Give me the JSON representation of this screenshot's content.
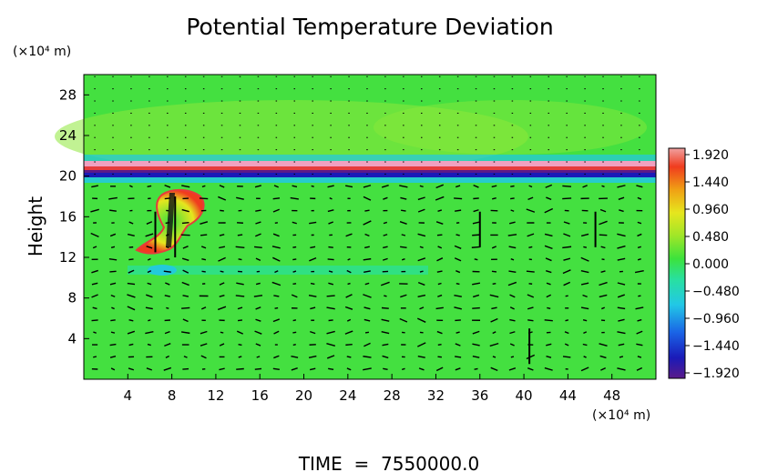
{
  "chart_data": {
    "type": "heatmap",
    "title": "Potential Temperature Deviation",
    "ylabel": "Height",
    "y_units": "(×10⁴ m)",
    "x_units": "(×10⁴ m)",
    "xlim": [
      0,
      52
    ],
    "ylim": [
      0,
      30
    ],
    "x_ticks": [
      4,
      8,
      12,
      16,
      20,
      24,
      28,
      32,
      36,
      40,
      44,
      48
    ],
    "y_ticks": [
      4,
      8,
      12,
      16,
      20,
      24,
      28
    ],
    "colorbar": {
      "ticks": [
        "1.920",
        "1.440",
        "0.960",
        "0.480",
        "0.000",
        "−0.480",
        "−0.960",
        "−1.440",
        "−1.920"
      ],
      "range": [
        -1.92,
        1.92
      ],
      "colors": [
        "#5a1a8a",
        "#1a1ab8",
        "#1a64e6",
        "#22c8e6",
        "#28e0a0",
        "#3ce23c",
        "#a0e628",
        "#e6e61e",
        "#f0a014",
        "#f03c1e",
        "#f0a0a0"
      ]
    },
    "features": [
      {
        "label": "stratospheric band",
        "y": 20.5,
        "value": 1.9
      },
      {
        "label": "convective plume",
        "x": 8.5,
        "y": 15.5,
        "value": 1.6
      }
    ],
    "wind_vectors": true,
    "time_label": "TIME  =  7550000.0"
  }
}
